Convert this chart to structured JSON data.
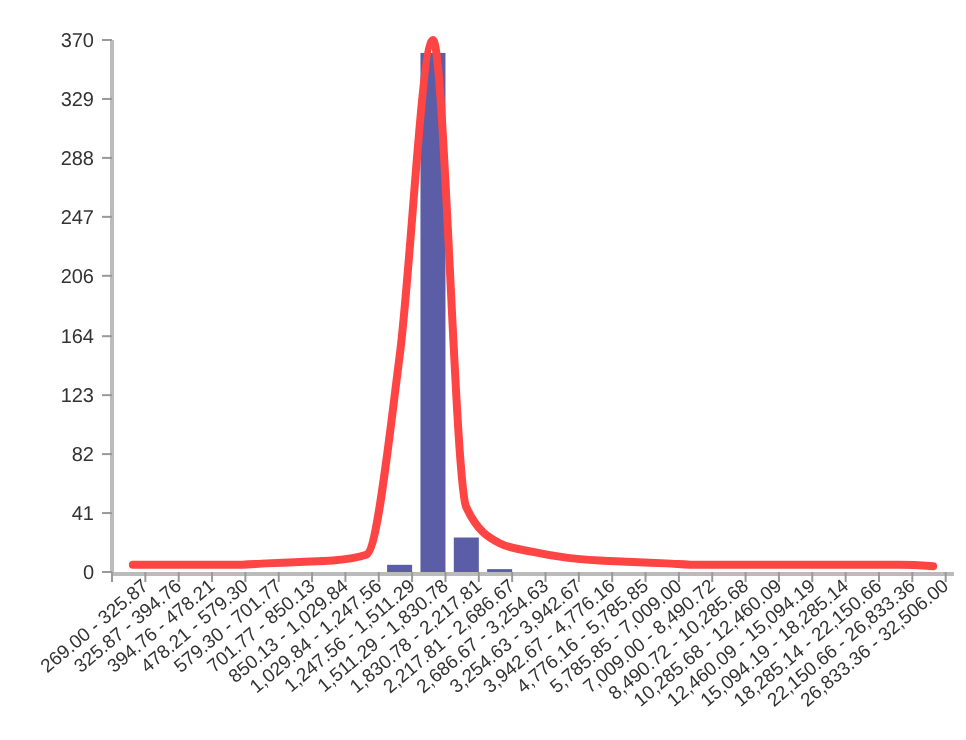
{
  "chart_data": {
    "type": "bar",
    "categories": [
      "269.00 - 325.87",
      "325.87 - 394.76",
      "394.76 - 478.21",
      "478.21 - 579.30",
      "579.30 - 701.77",
      "701.77 - 850.13",
      "850.13 - 1,029.84",
      "1,029.84 - 1,247.56",
      "1,247.56 - 1,511.29",
      "1,511.29 - 1,830.78",
      "1,830.78 - 2,217.81",
      "2,217.81 - 2,686.67",
      "2,686.67 - 3,254.63",
      "3,254.63 - 3,942.67",
      "3,942.67 - 4,776.16",
      "4,776.16 - 5,785.85",
      "5,785.85 - 7,009.00",
      "7,009.00 - 8,490.72",
      "8,490.72 - 10,285.68",
      "10,285.68 - 12,460.09",
      "12,460.09 - 15,094.19",
      "15,094.19 - 18,285.14",
      "18,285.14 - 22,150.66",
      "22,150.66 - 26,833.36",
      "26,833.36 - 32,506.00"
    ],
    "series": [
      {
        "color": "#5b5ea6",
        "values": [
          0,
          0,
          0,
          0,
          0,
          0,
          0,
          0,
          5,
          361,
          24,
          2,
          0,
          0,
          0,
          0,
          0,
          0,
          0,
          0,
          0,
          0,
          0,
          0,
          0
        ]
      },
      {
        "type": "line",
        "color": "#ff4444",
        "values": [
          5,
          5,
          5,
          5,
          6,
          7,
          8,
          12,
          150,
          370,
          45,
          20,
          14,
          10,
          8,
          7,
          6,
          5,
          5,
          5,
          5,
          5,
          5,
          5,
          4
        ]
      }
    ],
    "ylim": [
      0,
      370
    ],
    "yticks": [
      0,
      41,
      82,
      123,
      164,
      206,
      247,
      288,
      329,
      370
    ],
    "grid": false
  }
}
